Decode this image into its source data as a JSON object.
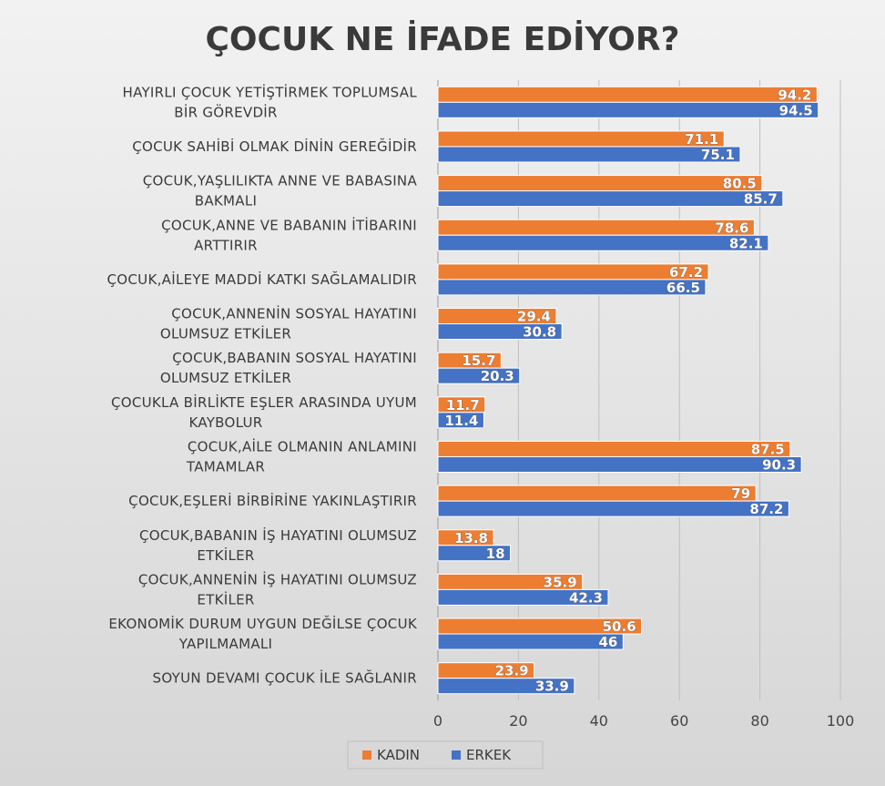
{
  "chart_data": {
    "type": "bar",
    "orientation": "horizontal",
    "title": "ÇOCUK NE İFADE EDİYOR?",
    "categories": [
      [
        "HAYIRLI ÇOCUK YETİŞTİRMEK TOPLUMSAL",
        "BİR GÖREVDİR"
      ],
      [
        "ÇOCUK SAHİBİ OLMAK DİNİN GEREĞİDİR"
      ],
      [
        "ÇOCUK,YAŞLILIKTA ANNE VE BABASINA",
        "BAKMALI"
      ],
      [
        "ÇOCUK,ANNE VE BABANIN İTİBARINI",
        "ARTTIRIR"
      ],
      [
        "ÇOCUK,AİLEYE MADDİ KATKI SAĞLAMALIDIR"
      ],
      [
        "ÇOCUK,ANNENİN SOSYAL HAYATINI",
        "OLUMSUZ ETKİLER"
      ],
      [
        "ÇOCUK,BABANIN SOSYAL HAYATINI",
        "OLUMSUZ ETKİLER"
      ],
      [
        "ÇOCUKLA BİRLİKTE EŞLER ARASINDA UYUM",
        "KAYBOLUR"
      ],
      [
        "ÇOCUK,AİLE OLMANIN ANLAMINI",
        "TAMAMLAR"
      ],
      [
        "ÇOCUK,EŞLERİ BİRBİRİNE YAKINLAŞTIRIR"
      ],
      [
        "ÇOCUK,BABANIN İŞ HAYATINI OLUMSUZ",
        "ETKİLER"
      ],
      [
        "ÇOCUK,ANNENİN İŞ HAYATINI OLUMSUZ",
        "ETKİLER"
      ],
      [
        "EKONOMİK DURUM UYGUN DEĞİLSE ÇOCUK",
        "YAPILMAMALI"
      ],
      [
        "SOYUN DEVAMI ÇOCUK İLE SAĞLANIR"
      ]
    ],
    "series": [
      {
        "name": "KADIN",
        "color": "#ed7d31",
        "values": [
          94.2,
          71.1,
          80.5,
          78.6,
          67.2,
          29.4,
          15.7,
          11.7,
          87.5,
          79,
          13.8,
          35.9,
          50.6,
          23.9
        ]
      },
      {
        "name": "ERKEK",
        "color": "#4472c4",
        "values": [
          94.5,
          75.1,
          85.7,
          82.1,
          66.5,
          30.8,
          20.3,
          11.4,
          90.3,
          87.2,
          18,
          42.3,
          46,
          33.9
        ]
      }
    ],
    "xlim": [
      0,
      100
    ],
    "xticks": [
      "0",
      "20",
      "40",
      "60",
      "80",
      "100"
    ],
    "grid": true,
    "legend_position": "bottom",
    "data_labels": true
  }
}
